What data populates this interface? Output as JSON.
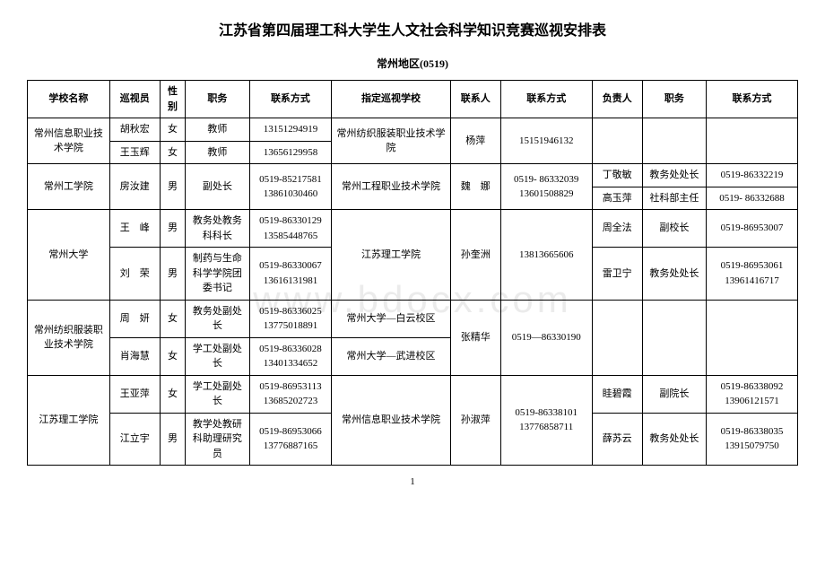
{
  "title": "江苏省第四届理工科大学生人文社会科学知识竞赛巡视安排表",
  "subtitle": "常州地区(0519)",
  "watermark": "www.bdocx.com",
  "page_number": "1",
  "headers": {
    "c0": "学校名称",
    "c1": "巡视员",
    "c2": "性别",
    "c3": "职务",
    "c4": "联系方式",
    "c5": "指定巡视学校",
    "c6": "联系人",
    "c7": "联系方式",
    "c8": "负责人",
    "c9": "职务",
    "c10": "联系方式"
  },
  "r": {
    "a_school": "常州信息职业技术学院",
    "a1_name": "胡秋宏",
    "a1_sex": "女",
    "a1_job": "教师",
    "a1_tel": "13151294919",
    "a2_name": "王玉辉",
    "a2_sex": "女",
    "a2_job": "教师",
    "a2_tel": "13656129958",
    "a_assign": "常州纺织服装职业技术学院",
    "a_contact": "杨萍",
    "a_ctel": "15151946132",
    "b_school": "常州工学院",
    "b1_name": "房汝建",
    "b1_sex": "男",
    "b1_job": "副处长",
    "b1_tel": "0519-85217581\n13861030460",
    "b_assign": "常州工程职业技术学院",
    "b_contact": "魏　娜",
    "b_ctel": "0519- 86332039\n13601508829",
    "b_l1_name": "丁敬敏",
    "b_l1_job": "教务处处长",
    "b_l1_tel": "0519-86332219",
    "b_l2_name": "高玉萍",
    "b_l2_job": "社科部主任",
    "b_l2_tel": "0519- 86332688",
    "c_school": "常州大学",
    "c1_name": "王　峰",
    "c1_sex": "男",
    "c1_job": "教务处教务科科长",
    "c1_tel": "0519-86330129\n13585448765",
    "c2_name": "刘　荣",
    "c2_sex": "男",
    "c2_job": "制药与生命科学学院团委书记",
    "c2_tel": "0519-86330067\n13616131981",
    "c_assign": "江苏理工学院",
    "c_contact": "孙奎洲",
    "c_ctel": "13813665606",
    "c_l1_name": "周全法",
    "c_l1_job": "副校长",
    "c_l1_tel": "0519-86953007",
    "c_l2_name": "雷卫宁",
    "c_l2_job": "教务处处长",
    "c_l2_tel": "0519-86953061\n13961416717",
    "d_school": "常州纺织服装职业技术学院",
    "d1_name": "周　妍",
    "d1_sex": "女",
    "d1_job": "教务处副处长",
    "d1_tel": "0519-86336025\n13775018891",
    "d1_assign": "常州大学—白云校区",
    "d2_name": "肖海慧",
    "d2_sex": "女",
    "d2_job": "学工处副处长",
    "d2_tel": "0519-86336028\n13401334652",
    "d2_assign": "常州大学—武进校区",
    "d_contact": "张精华",
    "d_ctel": "0519—86330190",
    "e_school": "江苏理工学院",
    "e1_name": "王亚萍",
    "e1_sex": "女",
    "e1_job": "学工处副处长",
    "e1_tel": "0519-86953113\n13685202723",
    "e2_name": "江立宇",
    "e2_sex": "男",
    "e2_job": "教学处教研科助理研究员",
    "e2_tel": "0519-86953066\n13776887165",
    "e_assign": "常州信息职业技术学院",
    "e_contact": "孙淑萍",
    "e_ctel": "0519-86338101\n13776858711",
    "e_l1_name": "眭碧霞",
    "e_l1_job": "副院长",
    "e_l1_tel": "0519-86338092\n13906121571",
    "e_l2_name": "薛苏云",
    "e_l2_job": "教务处处长",
    "e_l2_tel": "0519-86338035\n13915079750"
  }
}
